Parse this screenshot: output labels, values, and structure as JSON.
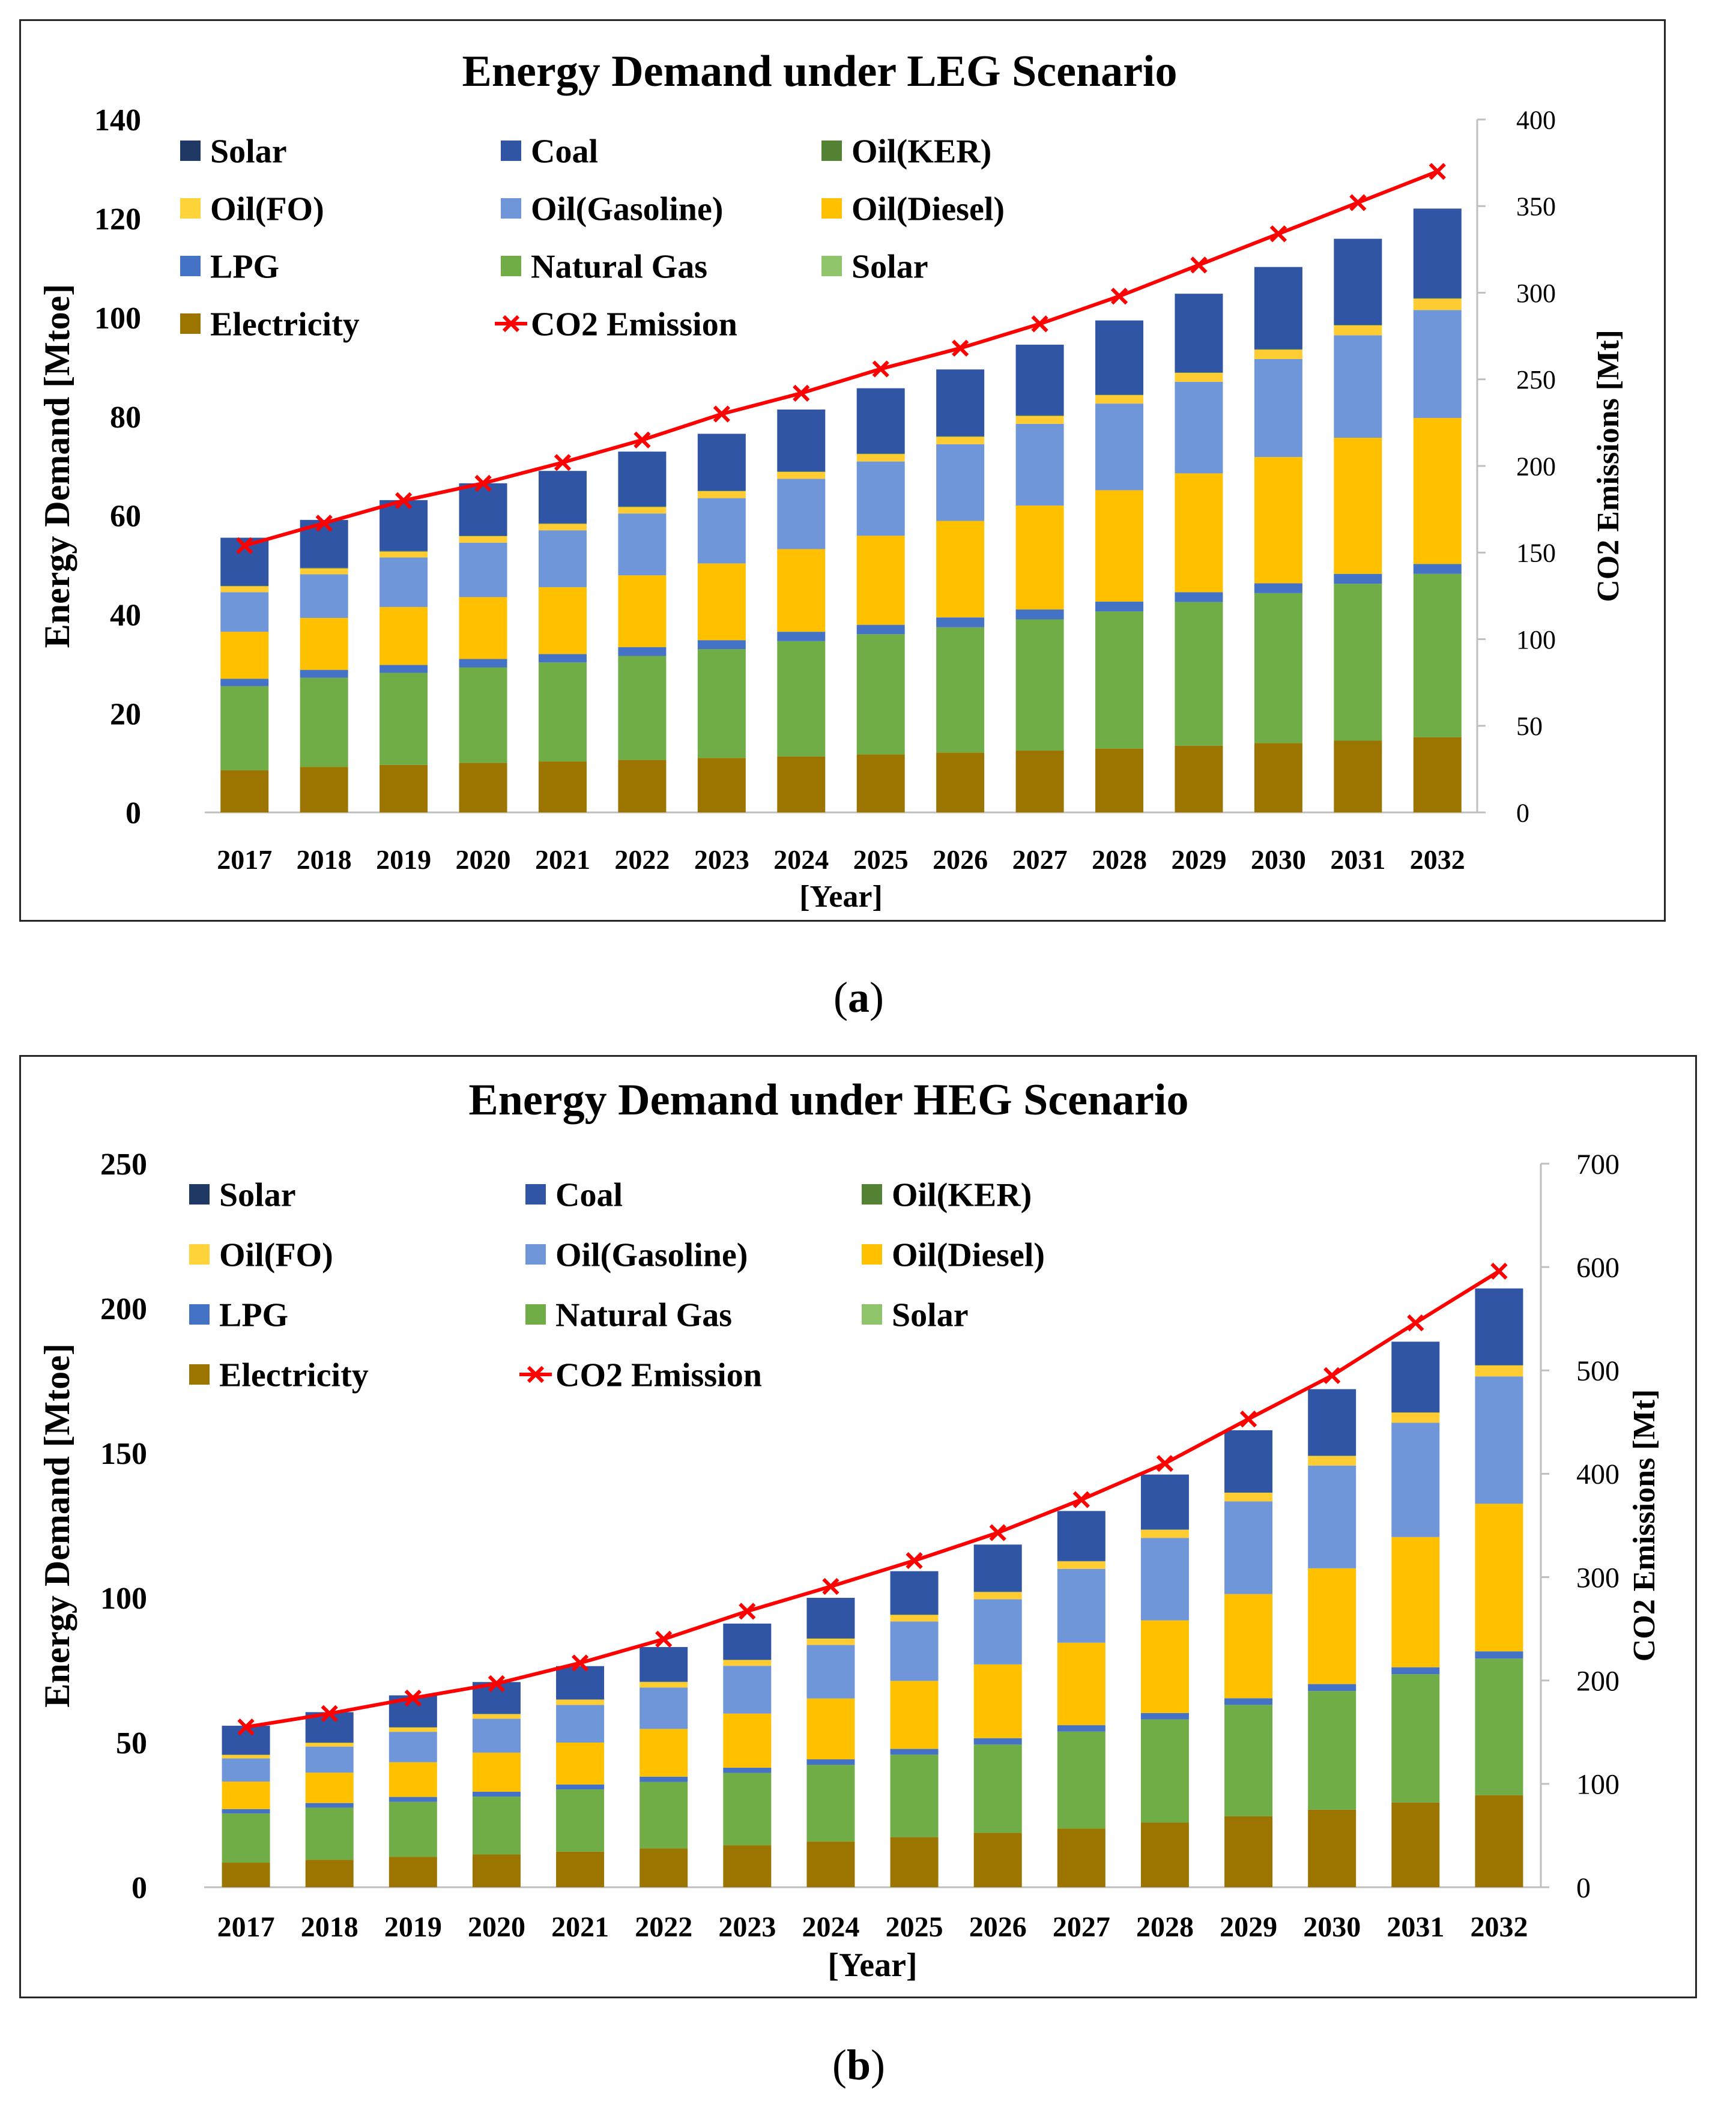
{
  "captions": {
    "a": "(a)",
    "b": "(b)",
    "a_letter": "a",
    "b_letter": "b",
    "open": "(",
    "close": ")"
  },
  "chart_data": [
    {
      "type": "bar",
      "stacked": true,
      "title": "Energy Demand under LEG Scenario",
      "xlabel": "[Year]",
      "ylabel": "Energy Demand [Mtoe]",
      "y2label": "CO2 Emissions [Mt]",
      "ylim": [
        0,
        140
      ],
      "yticks": [
        0,
        20,
        40,
        60,
        80,
        100,
        120,
        140
      ],
      "y2lim": [
        0,
        400
      ],
      "y2ticks": [
        0,
        50,
        100,
        150,
        200,
        250,
        300,
        350,
        400
      ],
      "categories": [
        "2017",
        "2018",
        "2019",
        "2020",
        "2021",
        "2022",
        "2023",
        "2024",
        "2025",
        "2026",
        "2027",
        "2028",
        "2029",
        "2030",
        "2031",
        "2032"
      ],
      "legend": [
        "Solar",
        "Coal",
        "Oil(KER)",
        "Oil(FO)",
        "Oil(Gasoline)",
        "Oil(Diesel)",
        "LPG",
        "Natural Gas",
        "Solar",
        "Electricity",
        "CO2 Emission"
      ],
      "series": [
        {
          "name": "Electricity",
          "color": "#9C7500",
          "values": [
            8.5,
            9.2,
            9.6,
            10.0,
            10.3,
            10.6,
            11.0,
            11.3,
            11.7,
            12.1,
            12.5,
            12.9,
            13.5,
            14.0,
            14.5,
            15.2
          ]
        },
        {
          "name": "Natural Gas",
          "color": "#70AD47",
          "values": [
            17.0,
            18.0,
            18.6,
            19.3,
            20.0,
            21.0,
            22.0,
            23.3,
            24.3,
            25.3,
            26.5,
            27.7,
            29.0,
            30.3,
            31.7,
            33.0
          ]
        },
        {
          "name": "LPG",
          "color": "#4472C4",
          "values": [
            1.5,
            1.6,
            1.6,
            1.7,
            1.7,
            1.8,
            1.8,
            1.9,
            1.9,
            2.0,
            2.0,
            2.0,
            2.0,
            2.0,
            2.0,
            2.0
          ]
        },
        {
          "name": "Oil(Diesel)",
          "color": "#FFC000",
          "values": [
            9.5,
            10.5,
            11.7,
            12.5,
            13.5,
            14.5,
            15.5,
            16.7,
            18.0,
            19.5,
            21.0,
            22.5,
            24.0,
            25.5,
            27.5,
            29.5
          ]
        },
        {
          "name": "Oil(Gasoline)",
          "color": "#6F96D8",
          "values": [
            8.0,
            8.8,
            10.0,
            11.0,
            11.5,
            12.5,
            13.2,
            14.2,
            15.0,
            15.5,
            16.5,
            17.5,
            18.5,
            19.8,
            20.7,
            21.8
          ]
        },
        {
          "name": "Oil(FO)",
          "color": "#FFCD33",
          "values": [
            1.2,
            1.2,
            1.2,
            1.3,
            1.3,
            1.3,
            1.4,
            1.4,
            1.5,
            1.5,
            1.6,
            1.7,
            1.8,
            1.9,
            2.0,
            2.3
          ]
        },
        {
          "name": "Oil(KER)",
          "color": "#548235",
          "values": [
            0.1,
            0.1,
            0.1,
            0.1,
            0.1,
            0.1,
            0.1,
            0.1,
            0.1,
            0.1,
            0.1,
            0.1,
            0.1,
            0.1,
            0.1,
            0.1
          ]
        },
        {
          "name": "Coal",
          "color": "#2F55A4",
          "values": [
            9.7,
            9.7,
            10.3,
            10.6,
            10.6,
            11.1,
            11.5,
            12.5,
            13.2,
            13.5,
            14.3,
            15.0,
            15.9,
            16.6,
            17.4,
            18.1
          ]
        }
      ],
      "line": {
        "name": "CO2 Emission",
        "color": "#FF0000",
        "values": [
          154,
          167,
          180,
          190,
          202,
          215,
          230,
          242,
          256,
          268,
          282,
          298,
          316,
          334,
          352,
          370
        ]
      }
    },
    {
      "type": "bar",
      "stacked": true,
      "title": "Energy Demand under HEG Scenario",
      "xlabel": "[Year]",
      "ylabel": "Energy Demand [Mtoe]",
      "y2label": "CO2 Emissions [Mt]",
      "ylim": [
        0,
        250
      ],
      "yticks": [
        0,
        50,
        100,
        150,
        200,
        250
      ],
      "y2lim": [
        0,
        700
      ],
      "y2ticks": [
        0,
        100,
        200,
        300,
        400,
        500,
        600,
        700
      ],
      "categories": [
        "2017",
        "2018",
        "2019",
        "2020",
        "2021",
        "2022",
        "2023",
        "2024",
        "2025",
        "2026",
        "2027",
        "2028",
        "2029",
        "2030",
        "2031",
        "2032"
      ],
      "legend": [
        "Solar",
        "Coal",
        "Oil(KER)",
        "Oil(FO)",
        "Oil(Gasoline)",
        "Oil(Diesel)",
        "LPG",
        "Natural Gas",
        "Solar",
        "Electricity",
        "CO2 Emission"
      ],
      "series": [
        {
          "name": "Electricity",
          "color": "#9C7500",
          "values": [
            8.5,
            9.5,
            10.5,
            11.3,
            12.3,
            13.4,
            14.5,
            15.8,
            17.3,
            18.8,
            20.3,
            22.3,
            24.5,
            26.8,
            29.3,
            31.8
          ]
        },
        {
          "name": "Natural Gas",
          "color": "#70AD47",
          "values": [
            17.0,
            18.0,
            19.0,
            20.0,
            21.5,
            23.0,
            25.0,
            26.5,
            28.5,
            30.5,
            33.5,
            35.7,
            38.5,
            41.0,
            44.3,
            47.2
          ]
        },
        {
          "name": "LPG",
          "color": "#4472C4",
          "values": [
            1.5,
            1.6,
            1.7,
            1.7,
            1.7,
            1.8,
            1.8,
            1.9,
            2.0,
            2.2,
            2.2,
            2.2,
            2.3,
            2.4,
            2.4,
            2.5
          ]
        },
        {
          "name": "Oil(Diesel)",
          "color": "#FFC000",
          "values": [
            9.5,
            10.5,
            12.0,
            13.5,
            14.5,
            16.5,
            18.7,
            21.0,
            23.5,
            25.5,
            28.5,
            32.0,
            36.0,
            40.0,
            45.0,
            51.0
          ]
        },
        {
          "name": "Oil(Gasoline)",
          "color": "#6F96D8",
          "values": [
            8.0,
            9.0,
            10.5,
            11.7,
            13.0,
            14.3,
            16.5,
            18.5,
            20.5,
            22.5,
            25.5,
            28.5,
            32.0,
            35.5,
            39.5,
            44.0
          ]
        },
        {
          "name": "Oil(FO)",
          "color": "#FFCD33",
          "values": [
            1.2,
            1.3,
            1.5,
            1.6,
            1.8,
            1.9,
            2.0,
            2.2,
            2.3,
            2.5,
            2.6,
            2.8,
            3.0,
            3.3,
            3.5,
            3.8
          ]
        },
        {
          "name": "Oil(KER)",
          "color": "#548235",
          "values": [
            0.1,
            0.1,
            0.1,
            0.1,
            0.1,
            0.1,
            0.1,
            0.1,
            0.1,
            0.1,
            0.1,
            0.1,
            0.1,
            0.1,
            0.1,
            0.1
          ]
        },
        {
          "name": "Coal",
          "color": "#2F55A4",
          "values": [
            10.0,
            10.5,
            11.0,
            11.0,
            11.5,
            12.0,
            12.5,
            14.0,
            15.0,
            16.3,
            17.3,
            19.0,
            21.5,
            23.0,
            24.4,
            26.5
          ]
        }
      ],
      "line": {
        "name": "CO2 Emission",
        "color": "#FF0000",
        "values": [
          155,
          168,
          183,
          197,
          217,
          240,
          267,
          291,
          316,
          343,
          375,
          410,
          453,
          495,
          546,
          596
        ]
      }
    }
  ]
}
